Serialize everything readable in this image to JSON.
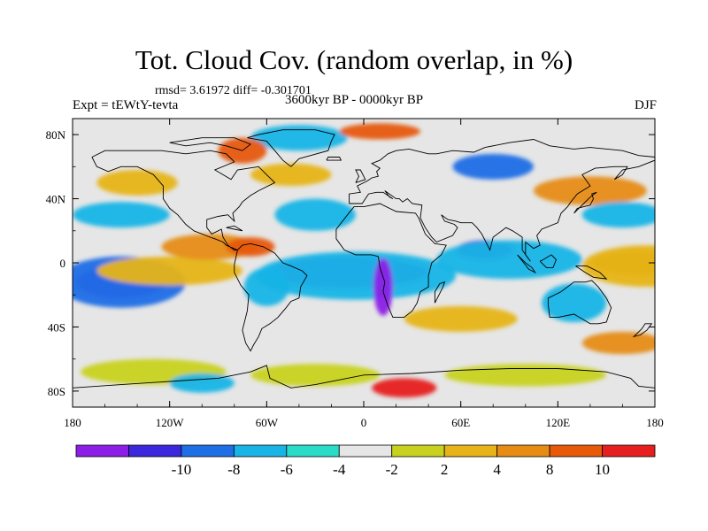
{
  "header": {
    "title": "Tot. Cloud Cov. (random overlap, in %)",
    "stats": "rmsd= 3.61972 diff= -0.301701",
    "experiment": "Expt = tEWtY-tevta",
    "period": "3600kyr BP - 0000kyr BP",
    "season": "DJF"
  },
  "axes": {
    "lon_labels": [
      "180",
      "120W",
      "60W",
      "0",
      "60E",
      "120E",
      "180"
    ],
    "lon_values": [
      -180,
      -120,
      -60,
      0,
      60,
      120,
      180
    ],
    "lat_labels": [
      "80N",
      "40N",
      "0",
      "40S",
      "80S"
    ],
    "lat_values": [
      80,
      40,
      0,
      -40,
      -80
    ],
    "lon_range": [
      -180,
      180
    ],
    "lat_range": [
      -90,
      90
    ]
  },
  "colorbar": {
    "colors": [
      "#8c1ee6",
      "#3c28dc",
      "#1e6ee6",
      "#19b4e6",
      "#28dcc8",
      "#e6e6e6",
      "#c8d21e",
      "#e6b419",
      "#e68c14",
      "#e65a0a",
      "#e61e1e"
    ],
    "labels": [
      "-10",
      "-8",
      "-6",
      "-4",
      "-2",
      "2",
      "4",
      "8",
      "10"
    ]
  },
  "map": {
    "background_color": "#e6e6e6",
    "anomaly_patches": [
      {
        "lon": -150,
        "lat": -12,
        "rx": 28,
        "ry": 10,
        "level": 0
      },
      {
        "lon": -150,
        "lat": -12,
        "rx": 40,
        "ry": 16,
        "level": 2
      },
      {
        "lon": -10,
        "lat": -5,
        "rx": 35,
        "ry": 6,
        "level": 0
      },
      {
        "lon": -10,
        "lat": -6,
        "rx": 50,
        "ry": 10,
        "level": 1
      },
      {
        "lon": -5,
        "lat": -8,
        "rx": 62,
        "ry": 15,
        "level": 3
      },
      {
        "lon": 12,
        "lat": -15,
        "rx": 6,
        "ry": 18,
        "level": 0
      },
      {
        "lon": 75,
        "lat": 8,
        "rx": 18,
        "ry": 6,
        "level": 1
      },
      {
        "lon": 90,
        "lat": 2,
        "rx": 45,
        "ry": 12,
        "level": 3
      },
      {
        "lon": 130,
        "lat": -25,
        "rx": 20,
        "ry": 12,
        "level": 3
      },
      {
        "lon": 170,
        "lat": 0,
        "rx": 30,
        "ry": 8,
        "level": 8
      },
      {
        "lon": 175,
        "lat": -2,
        "rx": 40,
        "ry": 13,
        "level": 7
      },
      {
        "lon": -120,
        "lat": -5,
        "rx": 45,
        "ry": 9,
        "level": 7
      },
      {
        "lon": -95,
        "lat": 10,
        "rx": 30,
        "ry": 8,
        "level": 8
      },
      {
        "lon": -70,
        "lat": 10,
        "rx": 15,
        "ry": 6,
        "level": 9
      },
      {
        "lon": 25,
        "lat": -78,
        "rx": 20,
        "ry": 6,
        "level": 10
      },
      {
        "lon": -30,
        "lat": -70,
        "rx": 40,
        "ry": 7,
        "level": 6
      },
      {
        "lon": -130,
        "lat": -68,
        "rx": 45,
        "ry": 8,
        "level": 6
      },
      {
        "lon": 100,
        "lat": -70,
        "rx": 50,
        "ry": 7,
        "level": 6
      },
      {
        "lon": -100,
        "lat": -75,
        "rx": 20,
        "ry": 6,
        "level": 3
      },
      {
        "lon": -40,
        "lat": 78,
        "rx": 30,
        "ry": 8,
        "level": 3
      },
      {
        "lon": -75,
        "lat": 70,
        "rx": 15,
        "ry": 8,
        "level": 9
      },
      {
        "lon": 10,
        "lat": 82,
        "rx": 25,
        "ry": 5,
        "level": 9
      },
      {
        "lon": 80,
        "lat": 60,
        "rx": 25,
        "ry": 8,
        "level": 2
      },
      {
        "lon": 140,
        "lat": 45,
        "rx": 35,
        "ry": 9,
        "level": 8
      },
      {
        "lon": 160,
        "lat": 30,
        "rx": 25,
        "ry": 8,
        "level": 3
      },
      {
        "lon": -150,
        "lat": 30,
        "rx": 30,
        "ry": 8,
        "level": 3
      },
      {
        "lon": -140,
        "lat": 50,
        "rx": 25,
        "ry": 8,
        "level": 7
      },
      {
        "lon": -30,
        "lat": 30,
        "rx": 25,
        "ry": 10,
        "level": 3
      },
      {
        "lon": -45,
        "lat": 55,
        "rx": 25,
        "ry": 7,
        "level": 7
      },
      {
        "lon": 60,
        "lat": -35,
        "rx": 35,
        "ry": 8,
        "level": 7
      },
      {
        "lon": -60,
        "lat": -15,
        "rx": 14,
        "ry": 12,
        "level": 3
      },
      {
        "lon": 160,
        "lat": -50,
        "rx": 25,
        "ry": 7,
        "level": 8
      }
    ],
    "coastlines": [
      [
        [
          -168,
          66
        ],
        [
          -160,
          70
        ],
        [
          -140,
          70
        ],
        [
          -125,
          70
        ],
        [
          -110,
          68
        ],
        [
          -95,
          70
        ],
        [
          -85,
          68
        ],
        [
          -80,
          63
        ],
        [
          -92,
          58
        ],
        [
          -82,
          52
        ],
        [
          -78,
          58
        ],
        [
          -65,
          60
        ],
        [
          -60,
          55
        ],
        [
          -55,
          50
        ],
        [
          -65,
          45
        ],
        [
          -70,
          42
        ],
        [
          -75,
          38
        ],
        [
          -77,
          35
        ],
        [
          -81,
          31
        ],
        [
          -80,
          26
        ],
        [
          -82,
          28
        ],
        [
          -84,
          30
        ],
        [
          -90,
          29
        ],
        [
          -97,
          27
        ],
        [
          -97,
          22
        ],
        [
          -94,
          18
        ],
        [
          -88,
          21
        ],
        [
          -87,
          16
        ],
        [
          -84,
          11
        ],
        [
          -80,
          8
        ],
        [
          -78,
          8
        ],
        [
          -85,
          11
        ],
        [
          -87,
          13
        ],
        [
          -92,
          15
        ],
        [
          -95,
          16
        ],
        [
          -105,
          20
        ],
        [
          -110,
          24
        ],
        [
          -115,
          30
        ],
        [
          -120,
          34
        ],
        [
          -124,
          40
        ],
        [
          -124,
          48
        ],
        [
          -130,
          55
        ],
        [
          -140,
          60
        ],
        [
          -150,
          60
        ],
        [
          -158,
          57
        ],
        [
          -165,
          60
        ],
        [
          -168,
          66
        ]
      ],
      [
        [
          -78,
          8
        ],
        [
          -75,
          11
        ],
        [
          -70,
          12
        ],
        [
          -62,
          10
        ],
        [
          -55,
          6
        ],
        [
          -50,
          0
        ],
        [
          -45,
          -2
        ],
        [
          -38,
          -5
        ],
        [
          -35,
          -8
        ],
        [
          -39,
          -15
        ],
        [
          -40,
          -22
        ],
        [
          -45,
          -24
        ],
        [
          -48,
          -28
        ],
        [
          -53,
          -34
        ],
        [
          -58,
          -38
        ],
        [
          -63,
          -41
        ],
        [
          -65,
          -46
        ],
        [
          -68,
          -51
        ],
        [
          -70,
          -55
        ],
        [
          -73,
          -50
        ],
        [
          -75,
          -42
        ],
        [
          -72,
          -30
        ],
        [
          -71,
          -20
        ],
        [
          -76,
          -14
        ],
        [
          -80,
          -6
        ],
        [
          -80,
          -1
        ],
        [
          -78,
          8
        ]
      ],
      [
        [
          -17,
          21
        ],
        [
          -17,
          15
        ],
        [
          -12,
          8
        ],
        [
          -5,
          5
        ],
        [
          5,
          5
        ],
        [
          9,
          4
        ],
        [
          10,
          -3
        ],
        [
          13,
          -12
        ],
        [
          12,
          -18
        ],
        [
          15,
          -27
        ],
        [
          18,
          -34
        ],
        [
          25,
          -34
        ],
        [
          30,
          -30
        ],
        [
          33,
          -25
        ],
        [
          35,
          -18
        ],
        [
          40,
          -15
        ],
        [
          40,
          -8
        ],
        [
          42,
          0
        ],
        [
          48,
          5
        ],
        [
          51,
          11
        ],
        [
          44,
          12
        ],
        [
          38,
          18
        ],
        [
          34,
          28
        ],
        [
          32,
          31
        ],
        [
          20,
          32
        ],
        [
          10,
          37
        ],
        [
          0,
          35
        ],
        [
          -6,
          35
        ],
        [
          -10,
          30
        ],
        [
          -17,
          21
        ]
      ],
      [
        [
          -9,
          37
        ],
        [
          -9,
          43
        ],
        [
          -2,
          44
        ],
        [
          -4,
          48
        ],
        [
          2,
          51
        ],
        [
          5,
          53
        ],
        [
          9,
          54
        ],
        [
          8,
          57
        ],
        [
          10,
          59
        ],
        [
          5,
          62
        ],
        [
          10,
          64
        ],
        [
          15,
          68
        ],
        [
          20,
          70
        ],
        [
          28,
          71
        ],
        [
          40,
          68
        ],
        [
          45,
          68
        ],
        [
          55,
          70
        ],
        [
          68,
          69
        ],
        [
          75,
          72
        ],
        [
          90,
          75
        ],
        [
          105,
          77
        ],
        [
          115,
          73
        ],
        [
          130,
          71
        ],
        [
          140,
          72
        ],
        [
          160,
          70
        ],
        [
          170,
          67
        ],
        [
          180,
          66
        ]
      ],
      [
        [
          180,
          64
        ],
        [
          170,
          60
        ],
        [
          160,
          58
        ],
        [
          155,
          52
        ],
        [
          160,
          55
        ],
        [
          163,
          60
        ],
        [
          155,
          60
        ],
        [
          143,
          59
        ],
        [
          135,
          55
        ],
        [
          140,
          48
        ],
        [
          132,
          43
        ],
        [
          128,
          38
        ],
        [
          126,
          35
        ],
        [
          122,
          31
        ],
        [
          120,
          25
        ],
        [
          110,
          21
        ],
        [
          107,
          17
        ],
        [
          109,
          11
        ],
        [
          105,
          9
        ],
        [
          100,
          13
        ],
        [
          100,
          5
        ],
        [
          103,
          1
        ],
        [
          98,
          8
        ],
        [
          98,
          16
        ],
        [
          92,
          20
        ],
        [
          88,
          22
        ],
        [
          80,
          16
        ],
        [
          78,
          8
        ],
        [
          73,
          18
        ],
        [
          70,
          22
        ],
        [
          67,
          25
        ],
        [
          60,
          25
        ],
        [
          57,
          26
        ],
        [
          52,
          27
        ],
        [
          48,
          30
        ],
        [
          50,
          26
        ],
        [
          56,
          24
        ],
        [
          58,
          22
        ],
        [
          55,
          17
        ],
        [
          45,
          13
        ],
        [
          42,
          16
        ],
        [
          38,
          22
        ],
        [
          35,
          28
        ],
        [
          36,
          36
        ],
        [
          30,
          37
        ],
        [
          27,
          40
        ],
        [
          24,
          38
        ],
        [
          22,
          40
        ],
        [
          20,
          40
        ],
        [
          13,
          45
        ],
        [
          16,
          41
        ],
        [
          18,
          40
        ],
        [
          12,
          44
        ],
        [
          8,
          44
        ],
        [
          3,
          43
        ],
        [
          -1,
          37
        ],
        [
          -9,
          37
        ]
      ],
      [
        [
          114,
          -22
        ],
        [
          122,
          -18
        ],
        [
          130,
          -12
        ],
        [
          137,
          -12
        ],
        [
          141,
          -11
        ],
        [
          145,
          -15
        ],
        [
          150,
          -22
        ],
        [
          153,
          -28
        ],
        [
          150,
          -37
        ],
        [
          145,
          -38
        ],
        [
          140,
          -38
        ],
        [
          135,
          -35
        ],
        [
          130,
          -32
        ],
        [
          120,
          -34
        ],
        [
          115,
          -34
        ],
        [
          114,
          -26
        ],
        [
          114,
          -22
        ]
      ],
      [
        [
          -180,
          -78
        ],
        [
          -150,
          -76
        ],
        [
          -120,
          -74
        ],
        [
          -90,
          -72
        ],
        [
          -70,
          -68
        ],
        [
          -60,
          -64
        ],
        [
          -58,
          -72
        ],
        [
          -45,
          -78
        ],
        [
          -30,
          -76
        ],
        [
          0,
          -70
        ],
        [
          30,
          -69
        ],
        [
          60,
          -67
        ],
        [
          90,
          -66
        ],
        [
          120,
          -66
        ],
        [
          150,
          -68
        ],
        [
          165,
          -72
        ],
        [
          170,
          -77
        ],
        [
          180,
          -78
        ]
      ],
      [
        [
          -45,
          60
        ],
        [
          -40,
          65
        ],
        [
          -22,
          70
        ],
        [
          -20,
          76
        ],
        [
          -18,
          80
        ],
        [
          -30,
          83
        ],
        [
          -50,
          83
        ],
        [
          -65,
          80
        ],
        [
          -72,
          78
        ],
        [
          -60,
          76
        ],
        [
          -55,
          70
        ],
        [
          -50,
          64
        ],
        [
          -45,
          60
        ]
      ],
      [
        [
          -5,
          50
        ],
        [
          -3,
          54
        ],
        [
          -5,
          58
        ],
        [
          -2,
          58
        ],
        [
          1,
          52
        ],
        [
          -5,
          50
        ]
      ],
      [
        [
          44,
          -25
        ],
        [
          49,
          -15
        ],
        [
          50,
          -12
        ],
        [
          47,
          -13
        ],
        [
          44,
          -18
        ],
        [
          44,
          -25
        ]
      ],
      [
        [
          130,
          31
        ],
        [
          132,
          34
        ],
        [
          136,
          35
        ],
        [
          140,
          36
        ],
        [
          142,
          40
        ],
        [
          141,
          43
        ],
        [
          144,
          44
        ],
        [
          140,
          41
        ],
        [
          136,
          37
        ],
        [
          132,
          33
        ],
        [
          130,
          31
        ]
      ],
      [
        [
          95,
          5
        ],
        [
          100,
          0
        ],
        [
          104,
          -3
        ],
        [
          106,
          -6
        ],
        [
          102,
          -4
        ],
        [
          95,
          5
        ]
      ],
      [
        [
          109,
          1
        ],
        [
          113,
          -3
        ],
        [
          117,
          -3
        ],
        [
          119,
          2
        ],
        [
          116,
          5
        ],
        [
          111,
          2
        ],
        [
          109,
          1
        ]
      ],
      [
        [
          131,
          -2
        ],
        [
          138,
          -2
        ],
        [
          146,
          -6
        ],
        [
          150,
          -10
        ],
        [
          142,
          -9
        ],
        [
          137,
          -6
        ],
        [
          131,
          -2
        ]
      ],
      [
        [
          172,
          -41
        ],
        [
          174,
          -38
        ],
        [
          178,
          -38
        ],
        [
          175,
          -42
        ],
        [
          171,
          -45
        ],
        [
          167,
          -46
        ],
        [
          172,
          -41
        ]
      ],
      [
        [
          -75,
          70
        ],
        [
          -85,
          73
        ],
        [
          -95,
          75
        ],
        [
          -110,
          73
        ],
        [
          -120,
          75
        ],
        [
          -100,
          78
        ],
        [
          -80,
          78
        ],
        [
          -70,
          74
        ],
        [
          -75,
          70
        ]
      ],
      [
        [
          -23,
          64
        ],
        [
          -14,
          64
        ],
        [
          -15,
          66
        ],
        [
          -22,
          66
        ],
        [
          -23,
          64
        ]
      ],
      [
        [
          -85,
          22
        ],
        [
          -80,
          23
        ],
        [
          -75,
          20
        ],
        [
          -80,
          21
        ],
        [
          -85,
          22
        ]
      ]
    ]
  }
}
